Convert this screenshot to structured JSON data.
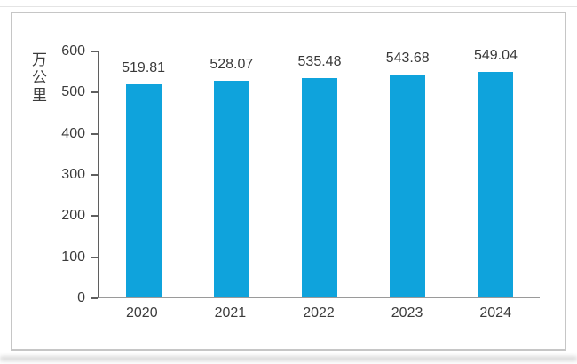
{
  "chart_data": {
    "type": "bar",
    "categories": [
      "2020",
      "2021",
      "2022",
      "2023",
      "2024"
    ],
    "values": [
      519.81,
      528.07,
      535.48,
      543.68,
      549.04
    ],
    "labels": [
      "519.81",
      "528.07",
      "535.48",
      "543.68",
      "549.04"
    ],
    "title": "",
    "xlabel": "",
    "ylabel": "万公里",
    "ylim": [
      0,
      600
    ],
    "yticks": [
      0,
      100,
      200,
      300,
      400,
      500,
      600
    ],
    "grid": false,
    "legend": "none",
    "bar_color": "#0fa3dc",
    "y_axis_color": "#5f5f5f",
    "x_axis_color": "#9a9a9a",
    "text_color": "#3c3c3c",
    "frame_border_color": "#c6c6c6"
  }
}
